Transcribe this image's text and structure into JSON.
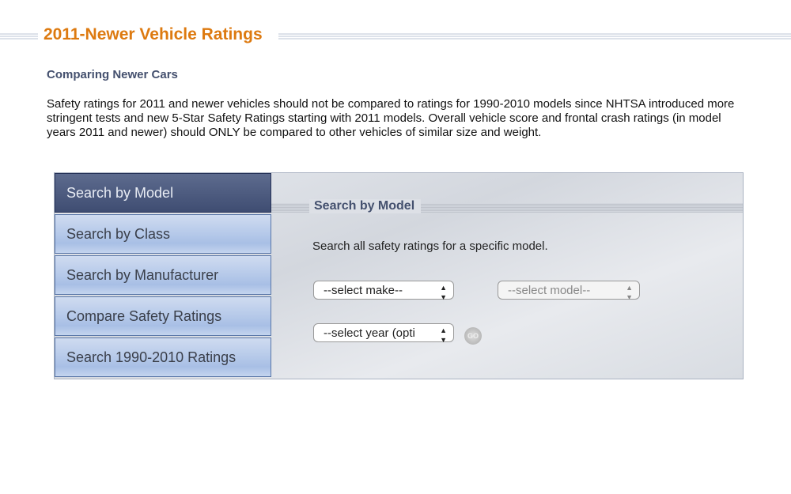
{
  "header": {
    "title": "2011-Newer Vehicle Ratings"
  },
  "section": {
    "subtitle": "Comparing Newer Cars",
    "paragraph": "Safety ratings for 2011 and newer vehicles should not be compared to ratings for 1990-2010 models since NHTSA introduced more stringent tests and new 5-Star Safety Ratings starting with 2011 models. Overall vehicle score and frontal crash ratings (in model years 2011 and newer) should ONLY be compared to other vehicles of similar size and weight."
  },
  "nav": {
    "items": [
      {
        "label": "Search by Model",
        "active": true
      },
      {
        "label": "Search by Class"
      },
      {
        "label": "Search by Manufacturer"
      },
      {
        "label": "Compare Safety Ratings"
      },
      {
        "label": "Search 1990-2010 Ratings"
      }
    ]
  },
  "panel": {
    "title": "Search by Model",
    "description": "Search all safety ratings for a specific model.",
    "make": "--select make--",
    "model": "--select model--",
    "year": "--select year (opti",
    "go": "GO"
  },
  "colors": {
    "title": "#dd7a10",
    "accent": "#44506e"
  }
}
